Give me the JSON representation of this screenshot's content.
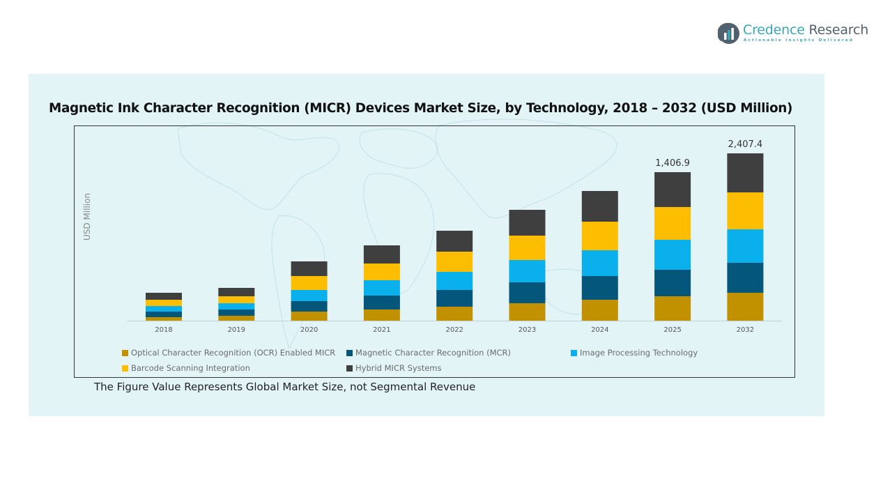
{
  "brand": {
    "name_part1": "Credence",
    "name_part2": " Research",
    "tagline": "Actionable Insights Delivered"
  },
  "note": "The Figure Value Represents Global Market Size, not Segmental Revenue",
  "colors": {
    "panel_bg": "#e3f4f6",
    "brand_teal": "#3aa7b5"
  },
  "chart_data": {
    "type": "bar",
    "stacked": true,
    "title": "Magnetic Ink Character Recognition (MICR) Devices Market Size, by Technology, 2018 – 2032 (USD Million)",
    "xlabel": "",
    "ylabel": "USD Million",
    "grid": false,
    "legend_position": "bottom",
    "categories": [
      "2018",
      "2019",
      "2020",
      "2021",
      "2022",
      "2023",
      "2024",
      "2025",
      "2032"
    ],
    "totals": [
      264.2,
      310.4,
      561.4,
      713.3,
      852.0,
      1050.2,
      1228.5,
      1406.9,
      2407.4
    ],
    "total_labels": [
      "",
      "",
      "",
      "",
      "",
      "",
      "",
      "1,406.9",
      "2,407.4"
    ],
    "series": [
      {
        "name": "Optical Character Recognition (OCR) Enabled MICR",
        "color": "#c29100",
        "values": [
          33.0,
          46.2,
          85.9,
          105.7,
          132.1,
          165.1,
          198.1,
          231.2,
          401.2
        ]
      },
      {
        "name": "Magnetic Character Recognition (MCR)",
        "color": "#04567a",
        "values": [
          52.8,
          59.4,
          99.1,
          132.1,
          158.5,
          198.1,
          224.6,
          251.0,
          431.3
        ]
      },
      {
        "name": "Image Processing Technology",
        "color": "#0ab0eb",
        "values": [
          52.8,
          59.4,
          105.7,
          145.3,
          171.7,
          211.4,
          244.4,
          284.0,
          481.5
        ]
      },
      {
        "name": "Barcode Scanning Integration",
        "color": "#fdbd00",
        "values": [
          59.4,
          66.0,
          132.1,
          158.5,
          191.6,
          231.2,
          270.8,
          310.4,
          531.6
        ]
      },
      {
        "name": "Hybrid MICR Systems",
        "color": "#3f3f3f",
        "values": [
          66.2,
          79.4,
          138.6,
          171.7,
          198.1,
          244.4,
          290.6,
          330.3,
          561.8
        ]
      }
    ]
  }
}
